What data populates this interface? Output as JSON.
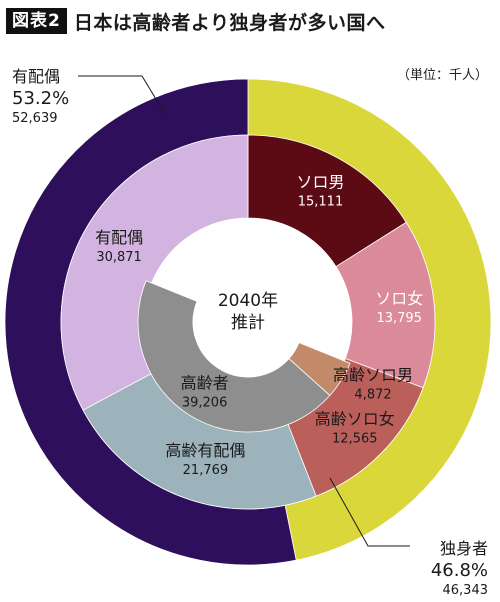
{
  "figure": {
    "badge": "図表2",
    "title": "日本は高齢者より独身者が多い国へ",
    "unit_note": "（単位：千人）",
    "center_line1": "2040年",
    "center_line2": "推計"
  },
  "chart_data": {
    "type": "pie",
    "rings": [
      {
        "ring": "outer",
        "slices": [
          {
            "label": "独身者",
            "value": 46343,
            "percent": "46.8%",
            "value_text": "46,343",
            "color": "#d9d73a"
          },
          {
            "label": "有配偶",
            "value": 52639,
            "percent": "53.2%",
            "value_text": "52,639",
            "color": "#2e0f5c"
          }
        ]
      },
      {
        "ring": "middle",
        "slices": [
          {
            "label": "ソロ男",
            "value": 15111,
            "value_text": "15,111",
            "color": "#5c0a14"
          },
          {
            "label": "ソロ女",
            "value": 13795,
            "value_text": "13,795",
            "color": "#db8a9a"
          },
          {
            "label": "高齢ソロ女",
            "value": 12565,
            "value_text": "12,565",
            "color": "#bb5f5b"
          },
          {
            "label": "高齢有配偶",
            "value": 21769,
            "value_text": "21,769",
            "color": "#9cb3bc"
          },
          {
            "label": "有配偶",
            "value": 30871,
            "value_text": "30,871",
            "color": "#d3b4e0"
          }
        ]
      },
      {
        "ring": "inner",
        "slices": [
          {
            "label": "高齢ソロ男",
            "value": 4872,
            "value_text": "4,872",
            "color": "#c28a68"
          },
          {
            "label": "高齢者",
            "value": 39206,
            "value_text": "39,206",
            "color": "#8e8e8e"
          }
        ]
      }
    ]
  }
}
